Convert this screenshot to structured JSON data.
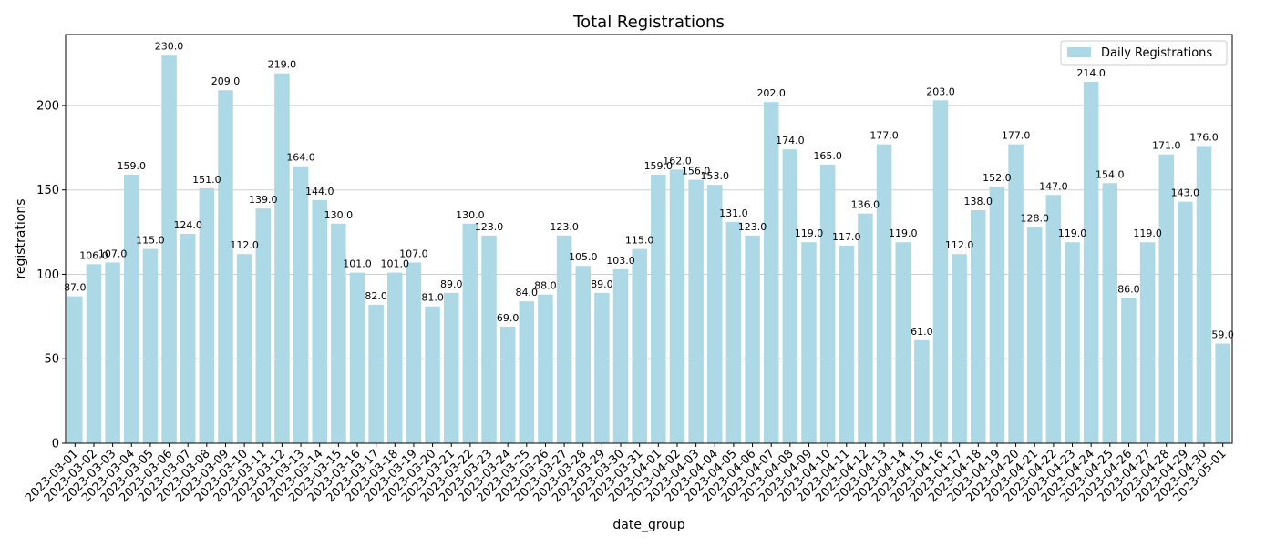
{
  "chart_data": {
    "type": "bar",
    "title": "Total Registrations",
    "xlabel": "date_group",
    "ylabel": "registrations",
    "ylim": [
      0,
      242
    ],
    "yticks": [
      0,
      50,
      100,
      150,
      200
    ],
    "grid": "y",
    "legend_position": "top-right",
    "bar_color": "#add8e6",
    "categories": [
      "2023-03-01",
      "2023-03-02",
      "2023-03-03",
      "2023-03-04",
      "2023-03-05",
      "2023-03-06",
      "2023-03-07",
      "2023-03-08",
      "2023-03-09",
      "2023-03-10",
      "2023-03-11",
      "2023-03-12",
      "2023-03-13",
      "2023-03-14",
      "2023-03-15",
      "2023-03-16",
      "2023-03-17",
      "2023-03-18",
      "2023-03-19",
      "2023-03-20",
      "2023-03-21",
      "2023-03-22",
      "2023-03-23",
      "2023-03-24",
      "2023-03-25",
      "2023-03-26",
      "2023-03-27",
      "2023-03-28",
      "2023-03-29",
      "2023-03-30",
      "2023-03-31",
      "2023-04-01",
      "2023-04-02",
      "2023-04-03",
      "2023-04-04",
      "2023-04-05",
      "2023-04-06",
      "2023-04-07",
      "2023-04-08",
      "2023-04-09",
      "2023-04-10",
      "2023-04-11",
      "2023-04-12",
      "2023-04-13",
      "2023-04-14",
      "2023-04-15",
      "2023-04-16",
      "2023-04-17",
      "2023-04-18",
      "2023-04-19",
      "2023-04-20",
      "2023-04-21",
      "2023-04-22",
      "2023-04-23",
      "2023-04-24",
      "2023-04-25",
      "2023-04-26",
      "2023-04-27",
      "2023-04-28",
      "2023-04-29",
      "2023-04-30",
      "2023-05-01"
    ],
    "series": [
      {
        "name": "Daily Registrations",
        "values": [
          87,
          106,
          107,
          159,
          115,
          230,
          124,
          151,
          209,
          112,
          139,
          219,
          164,
          144,
          130,
          101,
          82,
          101,
          107,
          81,
          89,
          130,
          123,
          69,
          84,
          88,
          123,
          105,
          89,
          103,
          115,
          159,
          162,
          156,
          153,
          131,
          123,
          202,
          174,
          119,
          165,
          117,
          136,
          177,
          119,
          61,
          203,
          112,
          138,
          152,
          177,
          128,
          147,
          119,
          214,
          154,
          86,
          119,
          171,
          143,
          176,
          59
        ]
      }
    ]
  }
}
